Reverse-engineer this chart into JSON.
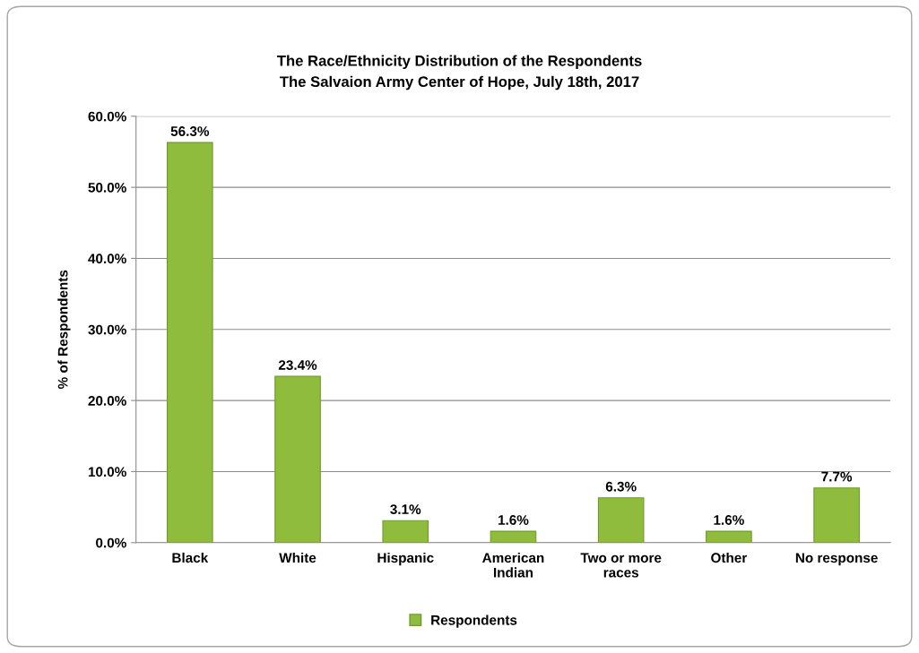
{
  "chart_data": {
    "type": "bar",
    "title": "The Race/Ethnicity Distribution of the Respondents",
    "subtitle": "The Salvaion Army Center of Hope, July 18th, 2017",
    "ylabel": "% of Respondents",
    "categories": [
      "Black",
      "White",
      "Hispanic",
      "American\nIndian",
      "Two or more\nraces",
      "Other",
      "No response"
    ],
    "series": [
      {
        "name": "Respondents",
        "color": "#8fbc3c",
        "values": [
          56.3,
          23.4,
          3.1,
          1.6,
          6.3,
          1.6,
          7.7
        ],
        "value_labels": [
          "56.3%",
          "23.4%",
          "3.1%",
          "1.6%",
          "6.3%",
          "1.6%",
          "7.7%"
        ]
      }
    ],
    "ylim": [
      0,
      60
    ],
    "yticks": [
      {
        "value": 0,
        "label": "0.0%"
      },
      {
        "value": 10,
        "label": "10.0%"
      },
      {
        "value": 20,
        "label": "20.0%"
      },
      {
        "value": 30,
        "label": "30.0%"
      },
      {
        "value": 40,
        "label": "40.0%"
      },
      {
        "value": 50,
        "label": "50.0%"
      },
      {
        "value": 60,
        "label": "60.0%"
      }
    ],
    "grid": "y",
    "legend": "bottom"
  }
}
